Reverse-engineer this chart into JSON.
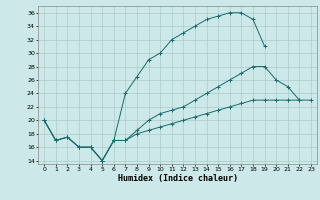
{
  "title": "",
  "xlabel": "Humidex (Indice chaleur)",
  "bg_color": "#cce8e8",
  "grid_color": "#aacccc",
  "line_color": "#1a6b6b",
  "xlim": [
    -0.5,
    23.5
  ],
  "ylim": [
    13.5,
    37
  ],
  "xticks": [
    0,
    1,
    2,
    3,
    4,
    5,
    6,
    7,
    8,
    9,
    10,
    11,
    12,
    13,
    14,
    15,
    16,
    17,
    18,
    19,
    20,
    21,
    22,
    23
  ],
  "yticks": [
    14,
    16,
    18,
    20,
    22,
    24,
    26,
    28,
    30,
    32,
    34,
    36
  ],
  "line1_x": [
    0,
    1,
    2,
    3,
    4,
    5,
    6,
    7,
    8,
    9,
    10,
    11,
    12,
    13,
    14,
    15,
    16,
    17,
    18,
    19
  ],
  "line1_y": [
    20,
    17,
    17.5,
    16,
    16,
    14,
    17,
    24,
    26.5,
    29,
    30,
    32,
    33,
    34,
    35,
    35.5,
    36,
    36,
    35,
    31
  ],
  "line2_x": [
    0,
    1,
    2,
    3,
    4,
    5,
    6,
    7,
    8,
    9,
    10,
    11,
    12,
    13,
    14,
    15,
    16,
    17,
    18,
    19,
    20,
    21,
    22
  ],
  "line2_y": [
    20,
    17,
    17.5,
    16,
    16,
    14,
    17,
    17,
    18.5,
    20,
    21,
    21.5,
    22,
    23,
    24,
    25,
    26,
    27,
    28,
    28,
    26,
    25,
    23
  ],
  "line3_x": [
    0,
    1,
    2,
    3,
    4,
    5,
    6,
    7,
    8,
    9,
    10,
    11,
    12,
    13,
    14,
    15,
    16,
    17,
    18,
    19,
    20,
    21,
    22,
    23
  ],
  "line3_y": [
    20,
    17,
    17.5,
    16,
    16,
    14,
    17,
    17,
    18,
    18.5,
    19,
    19.5,
    20,
    20.5,
    21,
    21.5,
    22,
    22.5,
    23,
    23,
    23,
    23,
    23,
    23
  ]
}
